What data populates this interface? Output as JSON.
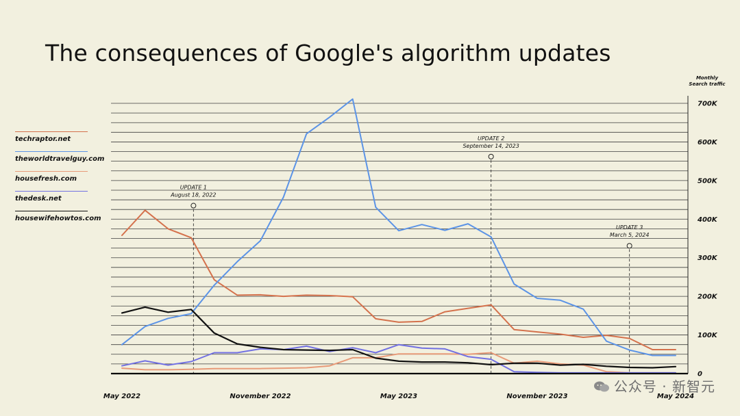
{
  "chart_data": {
    "type": "line",
    "title": "The consequences of Google's algorithm updates",
    "y_axis_title": [
      "Monthly",
      "Search traffic"
    ],
    "ylim": [
      0,
      700000
    ],
    "y_ticks": [
      0,
      100000,
      200000,
      300000,
      400000,
      500000,
      600000,
      700000
    ],
    "y_tick_labels": [
      "0",
      "100K",
      "200K",
      "300K",
      "400K",
      "500K",
      "600K",
      "700K"
    ],
    "x_ticks": [
      0,
      6,
      12,
      18,
      24
    ],
    "x_tick_labels": [
      "May 2022",
      "November 2022",
      "May 2023",
      "November 2023",
      "May 2024"
    ],
    "xlim": [
      0,
      24
    ],
    "series": [
      {
        "name": "techraptor.net",
        "color": "#d4714c",
        "x": [
          0,
          1,
          2,
          3,
          4,
          5,
          6,
          7,
          8,
          9,
          10,
          11,
          12,
          13,
          14,
          15,
          16,
          17,
          18,
          19,
          20,
          21,
          22,
          23,
          24
        ],
        "values": [
          358000,
          423000,
          375000,
          352000,
          243000,
          203000,
          204000,
          200000,
          203000,
          202000,
          199000,
          142000,
          133000,
          135000,
          160000,
          169000,
          178000,
          114000,
          108000,
          102000,
          94000,
          99000,
          91000,
          62000,
          62000
        ]
      },
      {
        "name": "theworldtravelguy.com",
        "color": "#5b93e6",
        "x": [
          0,
          1,
          2,
          3,
          4,
          5,
          6,
          7,
          8,
          9,
          10,
          11,
          12,
          13,
          14,
          15,
          16,
          17,
          18,
          19,
          20,
          21,
          22,
          23,
          24
        ],
        "values": [
          75000,
          122000,
          143000,
          155000,
          229000,
          290000,
          344000,
          457000,
          621000,
          664000,
          711000,
          431000,
          370000,
          386000,
          371000,
          388000,
          354000,
          232000,
          195000,
          190000,
          167000,
          84000,
          61000,
          47000,
          47000
        ]
      },
      {
        "name": "housefresh.com",
        "color": "#e89a78",
        "x": [
          0,
          1,
          2,
          3,
          4,
          5,
          6,
          7,
          8,
          9,
          10,
          11,
          12,
          13,
          14,
          15,
          16,
          17,
          18,
          19,
          20,
          21,
          22,
          23,
          24
        ],
        "values": [
          14000,
          10000,
          10000,
          11000,
          13000,
          13000,
          13000,
          14000,
          15000,
          20000,
          41000,
          41000,
          51000,
          51000,
          51000,
          50000,
          54000,
          27000,
          32000,
          25000,
          22000,
          5000,
          2000,
          2000,
          2000
        ]
      },
      {
        "name": "thedesk.net",
        "color": "#7170e2",
        "x": [
          0,
          1,
          2,
          3,
          4,
          5,
          6,
          7,
          8,
          9,
          10,
          11,
          12,
          13,
          14,
          15,
          16,
          17,
          18,
          19,
          20,
          21,
          22,
          23,
          24
        ],
        "values": [
          20000,
          33000,
          22000,
          31000,
          54000,
          54000,
          64000,
          62000,
          71000,
          57000,
          67000,
          54000,
          75000,
          66000,
          64000,
          44000,
          37000,
          5000,
          3000,
          2000,
          2000,
          2000,
          2000,
          2000,
          2000
        ]
      },
      {
        "name": "housewifehowtos.com",
        "color": "#111111",
        "x": [
          0,
          1,
          2,
          3,
          4,
          5,
          6,
          7,
          8,
          9,
          10,
          11,
          12,
          13,
          14,
          15,
          16,
          17,
          18,
          19,
          20,
          21,
          22,
          23,
          24
        ],
        "values": [
          157000,
          172000,
          159000,
          166000,
          105000,
          77000,
          68000,
          62000,
          61000,
          60000,
          62000,
          40000,
          32000,
          30000,
          30000,
          28000,
          23000,
          27000,
          27000,
          22000,
          24000,
          19000,
          16000,
          15000,
          18000
        ]
      }
    ],
    "annotations": [
      {
        "label": "UPDATE 1",
        "date": "August 18, 2022",
        "x": 3.1,
        "marker_value": 435000
      },
      {
        "label": "UPDATE 2",
        "date": "September 14, 2023",
        "x": 16.0,
        "marker_value": 562000
      },
      {
        "label": "UPDATE 3",
        "date": "March 5, 2024",
        "x": 22.0,
        "marker_value": 331000
      }
    ]
  },
  "watermark": "公众号 · 新智元",
  "colors": {
    "background": "#f2f0df",
    "grid": "#3c3c3c"
  }
}
